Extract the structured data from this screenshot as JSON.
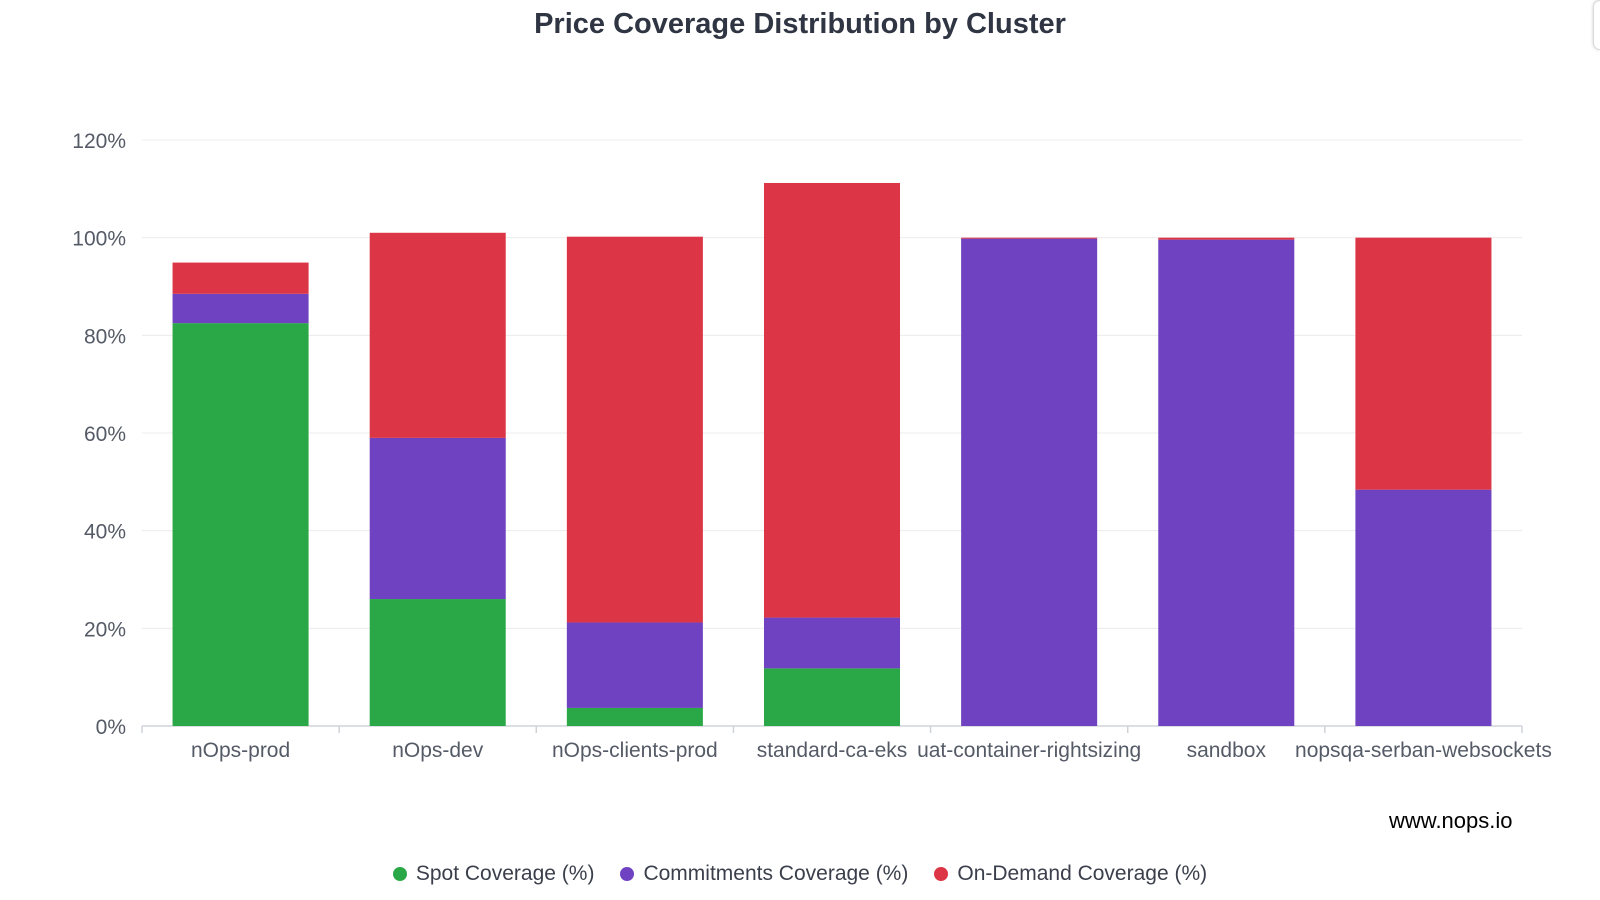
{
  "chart_data": {
    "type": "bar",
    "stacked": true,
    "title": "Price Coverage Distribution by Cluster",
    "categories": [
      "nOps-prod",
      "nOps-dev",
      "nOps-clients-prod",
      "standard-ca-eks",
      "uat-container-rightsizing",
      "sandbox",
      "nopsqa-serban-websockets"
    ],
    "series": [
      {
        "name": "Spot Coverage (%)",
        "color": "#2aa847",
        "values": [
          82.5,
          26,
          3.7,
          11.8,
          0,
          0,
          0
        ]
      },
      {
        "name": "Commitments Coverage (%)",
        "color": "#6f42c1",
        "values": [
          6,
          33,
          17.5,
          10.4,
          99.8,
          99.6,
          48.4
        ]
      },
      {
        "name": "On-Demand Coverage (%)",
        "color": "#dc3545",
        "values": [
          6.4,
          42,
          79,
          89,
          0.2,
          0.4,
          51.6
        ]
      }
    ],
    "y_ticks": [
      "0%",
      "20%",
      "40%",
      "60%",
      "80%",
      "100%",
      "120%"
    ],
    "ylim": [
      0,
      120
    ],
    "grid": true,
    "legend_position": "bottom"
  },
  "watermark": "www.nops.io"
}
